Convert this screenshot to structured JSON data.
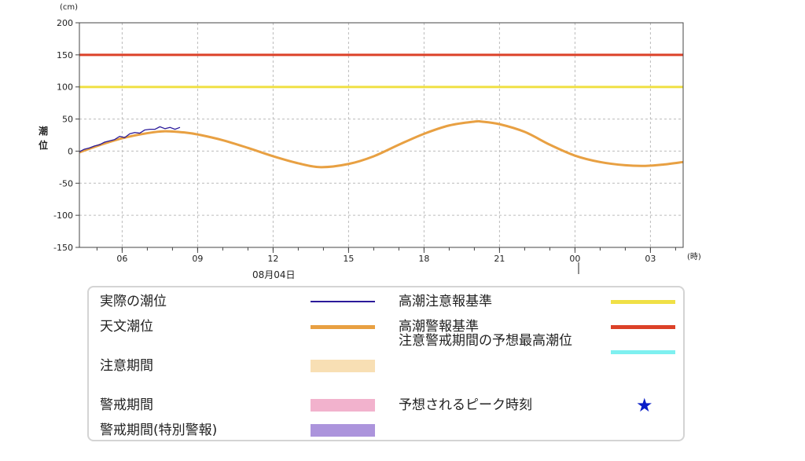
{
  "chart_data": {
    "type": "line",
    "y_unit": "(cm)",
    "ylabel": "潮位",
    "x_unit": "(時)",
    "date_label": "08月04日",
    "ylim": [
      -150,
      200
    ],
    "yticks": [
      200,
      150,
      100,
      50,
      0,
      -50,
      -100,
      -150
    ],
    "xlim": [
      4.3,
      28.3
    ],
    "xticks": [
      {
        "h": 6,
        "label": "06"
      },
      {
        "h": 9,
        "label": "09"
      },
      {
        "h": 12,
        "label": "12"
      },
      {
        "h": 15,
        "label": "15"
      },
      {
        "h": 18,
        "label": "18"
      },
      {
        "h": 21,
        "label": "21"
      },
      {
        "h": 24,
        "label": "00"
      },
      {
        "h": 27,
        "label": "03"
      }
    ],
    "grid": true,
    "series": [
      {
        "name": "天文潮位",
        "color": "#e8a042",
        "x": [
          4.3,
          5,
          6,
          7,
          7.7,
          8.5,
          9,
          10,
          11,
          12,
          13,
          13.9,
          15,
          16,
          17,
          18,
          19,
          20,
          20.3,
          21,
          22,
          23,
          24,
          25,
          26,
          26.8,
          27.5,
          28.3
        ],
        "y": [
          -2,
          8,
          20,
          28,
          31,
          29,
          26,
          17,
          5,
          -8,
          -19,
          -25,
          -20,
          -8,
          10,
          27,
          40,
          46,
          46,
          42,
          30,
          10,
          -7,
          -17,
          -22,
          -23,
          -21,
          -17
        ]
      },
      {
        "name": "実際の潮位",
        "color": "#2b1a9a",
        "x": [
          4.3,
          4.5,
          4.7,
          4.9,
          5.1,
          5.3,
          5.5,
          5.7,
          5.9,
          6.1,
          6.3,
          6.5,
          6.7,
          6.9,
          7.1,
          7.3,
          7.5,
          7.7,
          7.9,
          8.1,
          8.3
        ],
        "y": [
          -1,
          3,
          5,
          8,
          10,
          14,
          16,
          18,
          23,
          21,
          27,
          29,
          28,
          33,
          34,
          34,
          38,
          35,
          37,
          34,
          37
        ]
      }
    ],
    "thresholds": [
      {
        "name": "高潮警報基準",
        "value": 150,
        "color": "#dc4128"
      },
      {
        "name": "高潮注意報基準",
        "value": 100,
        "color": "#f0e046"
      }
    ]
  },
  "legend": {
    "items": [
      {
        "label": "実際の潮位",
        "color": "#2b1a9a",
        "kind": "line"
      },
      {
        "label": "天文潮位",
        "color": "#e8a042",
        "kind": "line"
      },
      {
        "label": "注意期間",
        "color": "#f8dfb4",
        "kind": "band"
      },
      {
        "label": "警戒期間",
        "color": "#f2b2cd",
        "kind": "band"
      },
      {
        "label": "警戒期間(特別警報)",
        "color": "#ac94dc",
        "kind": "band"
      },
      {
        "label": "高潮注意報基準",
        "color": "#f0e046",
        "kind": "line"
      },
      {
        "label": "高潮警報基準",
        "color": "#dc4128",
        "kind": "line"
      },
      {
        "label": "注意警戒期間の予想最高潮位",
        "color": "#7ef0f0",
        "kind": "line"
      },
      {
        "label": "予想されるピーク時刻",
        "color": "#0a1ec8",
        "kind": "star",
        "symbol": "★"
      }
    ]
  }
}
